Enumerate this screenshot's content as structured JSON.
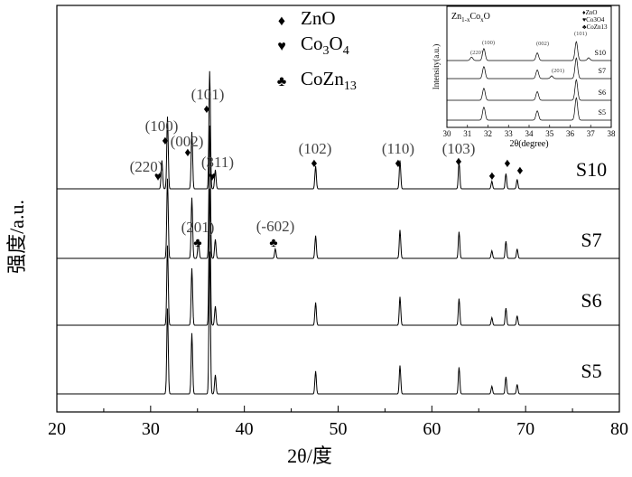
{
  "chart_data": {
    "type": "line",
    "title": "",
    "xlabel": "2θ/度",
    "ylabel": "强度/a.u.",
    "xlim": [
      20,
      80
    ],
    "x_ticks": [
      "20",
      "30",
      "40",
      "50",
      "60",
      "70",
      "80"
    ],
    "grid": false,
    "legend_placement": "top-center",
    "legend": [
      {
        "symbol": "♦",
        "label": "ZnO"
      },
      {
        "symbol": "♥",
        "label": "Co3O4"
      },
      {
        "symbol": "♣",
        "label": "CoZn13"
      }
    ],
    "series": [
      {
        "name": "S10",
        "peaks": [
          [
            31.2,
            0.15
          ],
          [
            31.8,
            0.38
          ],
          [
            34.4,
            0.3
          ],
          [
            36.3,
            0.62
          ],
          [
            36.9,
            0.1
          ],
          [
            47.6,
            0.12
          ],
          [
            56.6,
            0.15
          ],
          [
            62.9,
            0.14
          ],
          [
            66.4,
            0.04
          ],
          [
            67.9,
            0.08
          ],
          [
            69.1,
            0.05
          ]
        ]
      },
      {
        "name": "S7",
        "peaks": [
          [
            31.8,
            0.42
          ],
          [
            34.4,
            0.32
          ],
          [
            35.1,
            0.1
          ],
          [
            36.3,
            0.7
          ],
          [
            36.9,
            0.1
          ],
          [
            43.3,
            0.05
          ],
          [
            47.6,
            0.12
          ],
          [
            56.6,
            0.15
          ],
          [
            62.9,
            0.14
          ],
          [
            66.4,
            0.04
          ],
          [
            67.9,
            0.09
          ],
          [
            69.1,
            0.05
          ]
        ]
      },
      {
        "name": "S6",
        "peaks": [
          [
            31.8,
            0.42
          ],
          [
            34.4,
            0.3
          ],
          [
            36.3,
            0.72
          ],
          [
            36.9,
            0.1
          ],
          [
            47.6,
            0.12
          ],
          [
            56.6,
            0.15
          ],
          [
            62.9,
            0.14
          ],
          [
            66.4,
            0.04
          ],
          [
            67.9,
            0.09
          ],
          [
            69.1,
            0.05
          ]
        ]
      },
      {
        "name": "S5",
        "peaks": [
          [
            31.8,
            0.45
          ],
          [
            34.4,
            0.32
          ],
          [
            36.3,
            0.75
          ],
          [
            36.9,
            0.1
          ],
          [
            47.6,
            0.12
          ],
          [
            56.6,
            0.15
          ],
          [
            62.9,
            0.14
          ],
          [
            66.4,
            0.04
          ],
          [
            67.9,
            0.09
          ],
          [
            69.1,
            0.05
          ]
        ]
      }
    ],
    "annotations": [
      {
        "text": "(100)",
        "x": 31.8,
        "symbol": "♦"
      },
      {
        "text": "(220)",
        "x": 31.2,
        "symbol": "♥"
      },
      {
        "text": "(002)",
        "x": 34.4,
        "symbol": "♦"
      },
      {
        "text": "(101)",
        "x": 36.3,
        "symbol": "♦"
      },
      {
        "text": "(311)",
        "x": 36.9,
        "symbol": "♥"
      },
      {
        "text": "(102)",
        "x": 47.6,
        "symbol": "♦"
      },
      {
        "text": "(110)",
        "x": 56.6,
        "symbol": "♦"
      },
      {
        "text": "(103)",
        "x": 62.9,
        "symbol": "♦"
      },
      {
        "text": "(201)",
        "x": 35.1,
        "symbol": "♣"
      },
      {
        "text": "(-602)",
        "x": 43.3,
        "symbol": "♣"
      }
    ],
    "inset": {
      "title": "Zn1-xCoxO",
      "xlabel": "2θ(degree)",
      "ylabel": "Intensity(a.u.)",
      "xlim": [
        30,
        38
      ],
      "x_ticks": [
        "30",
        "31",
        "32",
        "33",
        "34",
        "35",
        "36",
        "37",
        "38"
      ],
      "legend": [
        "♦ZnO",
        "♥Co3O4",
        "♣CoZn13"
      ],
      "labels": [
        {
          "text": "(100)",
          "x": 31.8
        },
        {
          "text": "(220)",
          "x": 31.2
        },
        {
          "text": "(002)",
          "x": 34.4
        },
        {
          "text": "(101)",
          "x": 36.3
        },
        {
          "text": "(201)",
          "x": 35.1
        }
      ],
      "series": [
        {
          "name": "S10",
          "peaks": [
            [
              31.2,
              0.1
            ],
            [
              31.8,
              0.35
            ],
            [
              34.4,
              0.22
            ],
            [
              36.3,
              0.55
            ],
            [
              36.9,
              0.08
            ]
          ]
        },
        {
          "name": "S7",
          "peaks": [
            [
              31.8,
              0.35
            ],
            [
              34.4,
              0.25
            ],
            [
              35.1,
              0.08
            ],
            [
              36.3,
              0.6
            ]
          ]
        },
        {
          "name": "S6",
          "peaks": [
            [
              31.8,
              0.35
            ],
            [
              34.4,
              0.25
            ],
            [
              36.3,
              0.6
            ]
          ]
        },
        {
          "name": "S5",
          "peaks": [
            [
              31.8,
              0.38
            ],
            [
              34.4,
              0.27
            ],
            [
              36.3,
              0.65
            ]
          ]
        }
      ]
    }
  }
}
